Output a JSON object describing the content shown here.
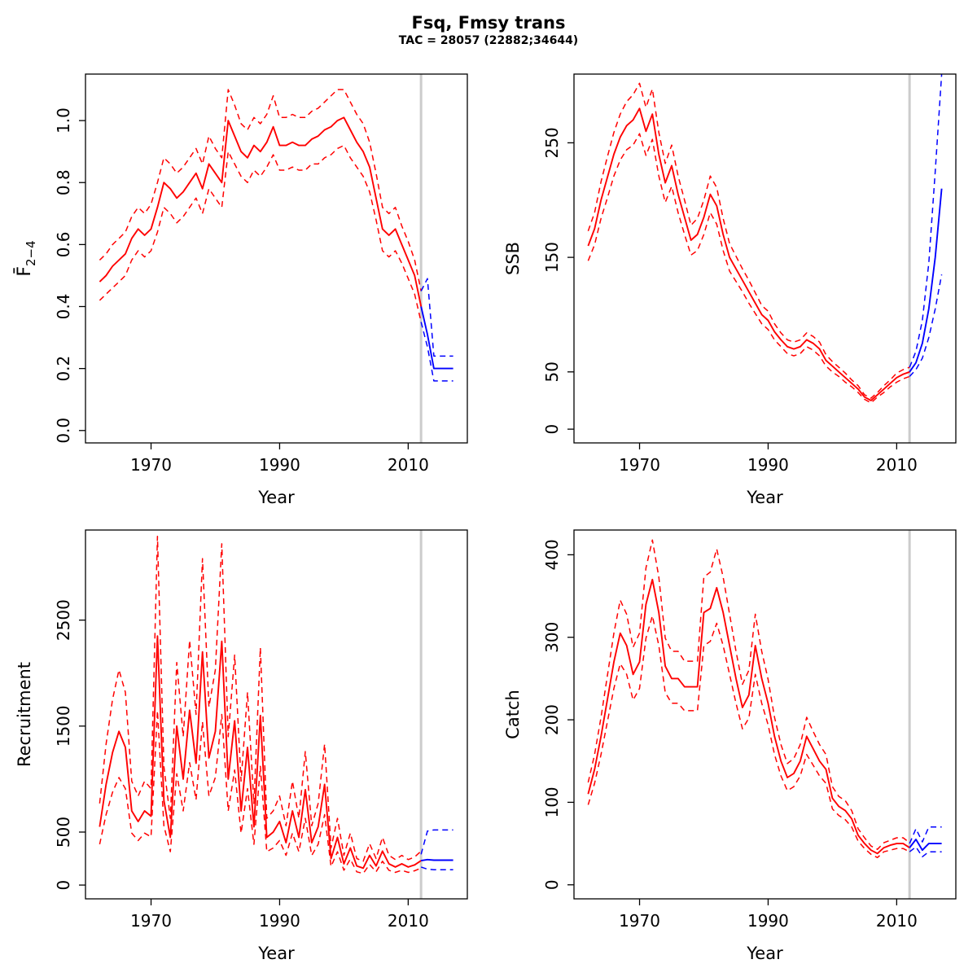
{
  "page": {
    "title": "Fsq, Fmsy trans",
    "subtitle": "TAC = 28057 (22882;34644)"
  },
  "chart_data": [
    {
      "id": "fbar",
      "type": "line",
      "title": "",
      "xlabel": "Year",
      "ylabel": "F̄",
      "ylabel_sub": "2−4",
      "xlim": [
        1959.8,
        2019.2
      ],
      "ylim": [
        -0.04,
        1.15
      ],
      "xticks": [
        1970,
        1990,
        2010
      ],
      "xtick_labels": [
        "1970",
        "1990",
        "2010"
      ],
      "yticks": [
        0.0,
        0.2,
        0.4,
        0.6,
        0.8,
        1.0
      ],
      "ytick_labels": [
        "0.0",
        "0.2",
        "0.4",
        "0.6",
        "0.8",
        "1.0"
      ],
      "vline_x": 2012,
      "legend": "none",
      "grid": false,
      "colors": {
        "history": "#ff0000",
        "forecast": "#0000ff",
        "vline": "#cccccc"
      },
      "x_history": [
        1962,
        1963,
        1964,
        1965,
        1966,
        1967,
        1968,
        1969,
        1970,
        1971,
        1972,
        1973,
        1974,
        1975,
        1976,
        1977,
        1978,
        1979,
        1980,
        1981,
        1982,
        1983,
        1984,
        1985,
        1986,
        1987,
        1988,
        1989,
        1990,
        1991,
        1992,
        1993,
        1994,
        1995,
        1996,
        1997,
        1998,
        1999,
        2000,
        2001,
        2002,
        2003,
        2004,
        2005,
        2006,
        2007,
        2008,
        2009,
        2010,
        2011,
        2012
      ],
      "history": {
        "median": [
          0.48,
          0.5,
          0.53,
          0.55,
          0.57,
          0.62,
          0.65,
          0.63,
          0.65,
          0.72,
          0.8,
          0.78,
          0.75,
          0.77,
          0.8,
          0.83,
          0.78,
          0.86,
          0.83,
          0.8,
          1.0,
          0.95,
          0.9,
          0.88,
          0.92,
          0.9,
          0.93,
          0.98,
          0.92,
          0.92,
          0.93,
          0.92,
          0.92,
          0.94,
          0.95,
          0.97,
          0.98,
          1.0,
          1.01,
          0.97,
          0.93,
          0.9,
          0.85,
          0.75,
          0.65,
          0.63,
          0.65,
          0.6,
          0.55,
          0.5,
          0.4
        ],
        "lower": [
          0.42,
          0.44,
          0.46,
          0.48,
          0.5,
          0.55,
          0.58,
          0.56,
          0.58,
          0.64,
          0.72,
          0.7,
          0.67,
          0.69,
          0.72,
          0.75,
          0.7,
          0.78,
          0.75,
          0.72,
          0.9,
          0.86,
          0.82,
          0.8,
          0.84,
          0.82,
          0.85,
          0.89,
          0.84,
          0.84,
          0.85,
          0.84,
          0.84,
          0.86,
          0.86,
          0.88,
          0.89,
          0.91,
          0.92,
          0.88,
          0.85,
          0.82,
          0.77,
          0.68,
          0.58,
          0.56,
          0.58,
          0.54,
          0.49,
          0.44,
          0.35
        ],
        "upper": [
          0.55,
          0.57,
          0.6,
          0.62,
          0.64,
          0.69,
          0.72,
          0.7,
          0.73,
          0.8,
          0.88,
          0.86,
          0.83,
          0.85,
          0.88,
          0.91,
          0.86,
          0.95,
          0.91,
          0.88,
          1.1,
          1.05,
          0.99,
          0.97,
          1.01,
          0.99,
          1.02,
          1.08,
          1.01,
          1.01,
          1.02,
          1.01,
          1.01,
          1.03,
          1.04,
          1.06,
          1.08,
          1.1,
          1.1,
          1.06,
          1.02,
          0.99,
          0.93,
          0.83,
          0.72,
          0.7,
          0.72,
          0.66,
          0.61,
          0.55,
          0.45
        ]
      },
      "x_forecast": [
        2012,
        2013,
        2014,
        2015,
        2016,
        2017
      ],
      "forecast": {
        "median": [
          0.4,
          0.31,
          0.2,
          0.2,
          0.2,
          0.2
        ],
        "lower": [
          0.35,
          0.27,
          0.16,
          0.16,
          0.16,
          0.16
        ],
        "upper": [
          0.45,
          0.49,
          0.24,
          0.24,
          0.24,
          0.24
        ]
      }
    },
    {
      "id": "ssb",
      "type": "line",
      "title": "",
      "xlabel": "Year",
      "ylabel": "SSB",
      "xlim": [
        1959.8,
        2019.2
      ],
      "ylim": [
        -12,
        310
      ],
      "xticks": [
        1970,
        1990,
        2010
      ],
      "xtick_labels": [
        "1970",
        "1990",
        "2010"
      ],
      "yticks": [
        0,
        50,
        150,
        250
      ],
      "ytick_labels": [
        "0",
        "50",
        "150",
        "250"
      ],
      "vline_x": 2012,
      "legend": "none",
      "grid": false,
      "colors": {
        "history": "#ff0000",
        "forecast": "#0000ff",
        "vline": "#cccccc"
      },
      "x_history": [
        1962,
        1963,
        1964,
        1965,
        1966,
        1967,
        1968,
        1969,
        1970,
        1971,
        1972,
        1973,
        1974,
        1975,
        1976,
        1977,
        1978,
        1979,
        1980,
        1981,
        1982,
        1983,
        1984,
        1985,
        1986,
        1987,
        1988,
        1989,
        1990,
        1991,
        1992,
        1993,
        1994,
        1995,
        1996,
        1997,
        1998,
        1999,
        2000,
        2001,
        2002,
        2003,
        2004,
        2005,
        2006,
        2007,
        2008,
        2009,
        2010,
        2011,
        2012
      ],
      "history": {
        "median": [
          160,
          175,
          200,
          220,
          240,
          255,
          265,
          270,
          280,
          260,
          275,
          240,
          215,
          230,
          205,
          185,
          165,
          170,
          185,
          205,
          195,
          170,
          150,
          140,
          130,
          120,
          110,
          100,
          95,
          85,
          78,
          72,
          70,
          72,
          78,
          75,
          70,
          60,
          55,
          50,
          45,
          40,
          35,
          28,
          25,
          30,
          35,
          40,
          45,
          48,
          50
        ],
        "lower": [
          147,
          161,
          184,
          202,
          221,
          235,
          244,
          248,
          258,
          239,
          253,
          221,
          198,
          212,
          189,
          170,
          152,
          156,
          170,
          189,
          179,
          156,
          138,
          129,
          120,
          110,
          101,
          92,
          87,
          78,
          72,
          66,
          64,
          66,
          72,
          69,
          64,
          55,
          50,
          46,
          41,
          37,
          32,
          26,
          23,
          28,
          32,
          37,
          41,
          44,
          46
        ],
        "upper": [
          173,
          189,
          216,
          238,
          259,
          275,
          286,
          292,
          302,
          281,
          297,
          259,
          232,
          248,
          221,
          200,
          178,
          184,
          200,
          221,
          211,
          184,
          162,
          151,
          140,
          130,
          119,
          108,
          103,
          92,
          84,
          78,
          76,
          78,
          84,
          81,
          76,
          65,
          59,
          54,
          49,
          43,
          38,
          30,
          27,
          32,
          38,
          43,
          49,
          52,
          54
        ]
      },
      "x_forecast": [
        2012,
        2013,
        2014,
        2015,
        2016,
        2017
      ],
      "forecast": {
        "median": [
          50,
          58,
          75,
          105,
          150,
          210
        ],
        "lower": [
          46,
          52,
          62,
          80,
          105,
          135
        ],
        "upper": [
          54,
          68,
          95,
          145,
          225,
          310
        ]
      }
    },
    {
      "id": "recruitment",
      "type": "line",
      "title": "",
      "xlabel": "Year",
      "ylabel": "Recruitment",
      "xlim": [
        1959.8,
        2019.2
      ],
      "ylim": [
        -130,
        3350
      ],
      "xticks": [
        1970,
        1990,
        2010
      ],
      "xtick_labels": [
        "1970",
        "1990",
        "2010"
      ],
      "yticks": [
        0,
        500,
        1500,
        2500
      ],
      "ytick_labels": [
        "0",
        "500",
        "1500",
        "2500"
      ],
      "vline_x": 2012,
      "legend": "none",
      "grid": false,
      "colors": {
        "history": "#ff0000",
        "forecast": "#0000ff",
        "vline": "#cccccc"
      },
      "x_history": [
        1962,
        1963,
        1964,
        1965,
        1966,
        1967,
        1968,
        1969,
        1970,
        1971,
        1972,
        1973,
        1974,
        1975,
        1976,
        1977,
        1978,
        1979,
        1980,
        1981,
        1982,
        1983,
        1984,
        1985,
        1986,
        1987,
        1988,
        1989,
        1990,
        1991,
        1992,
        1993,
        1994,
        1995,
        1996,
        1997,
        1998,
        1999,
        2000,
        2001,
        2002,
        2003,
        2004,
        2005,
        2006,
        2007,
        2008,
        2009,
        2010,
        2011,
        2012
      ],
      "history": {
        "median": [
          550,
          950,
          1250,
          1450,
          1300,
          700,
          600,
          700,
          650,
          2350,
          800,
          450,
          1500,
          1000,
          1650,
          1150,
          2200,
          1200,
          1450,
          2300,
          1000,
          1550,
          700,
          1300,
          550,
          1600,
          450,
          500,
          600,
          400,
          700,
          450,
          900,
          400,
          550,
          950,
          250,
          450,
          200,
          350,
          180,
          160,
          280,
          180,
          320,
          200,
          170,
          200,
          170,
          190,
          230
        ],
        "lower": [
          385,
          665,
          875,
          1015,
          910,
          490,
          420,
          490,
          455,
          1645,
          560,
          315,
          1050,
          700,
          1155,
          805,
          1540,
          840,
          1015,
          1610,
          700,
          1085,
          490,
          910,
          385,
          1120,
          315,
          350,
          420,
          280,
          490,
          315,
          630,
          280,
          385,
          665,
          175,
          315,
          140,
          245,
          125,
          110,
          195,
          125,
          225,
          140,
          120,
          140,
          120,
          135,
          160
        ],
        "upper": [
          770,
          1330,
          1750,
          2030,
          1820,
          980,
          840,
          980,
          910,
          3290,
          1120,
          630,
          2100,
          1400,
          2310,
          1610,
          3080,
          1680,
          2030,
          3220,
          1400,
          2170,
          980,
          1820,
          770,
          2240,
          630,
          700,
          840,
          560,
          980,
          630,
          1260,
          560,
          770,
          1330,
          350,
          630,
          280,
          490,
          250,
          225,
          390,
          250,
          450,
          280,
          240,
          280,
          240,
          265,
          320
        ]
      },
      "x_forecast": [
        2012,
        2013,
        2014,
        2015,
        2016,
        2017
      ],
      "forecast": {
        "median": [
          230,
          240,
          235,
          235,
          235,
          235
        ],
        "lower": [
          170,
          150,
          145,
          145,
          145,
          145
        ],
        "upper": [
          290,
          510,
          520,
          520,
          520,
          520
        ]
      }
    },
    {
      "id": "catch",
      "type": "line",
      "title": "",
      "xlabel": "Year",
      "ylabel": "Catch",
      "xlim": [
        1959.8,
        2019.2
      ],
      "ylim": [
        -17,
        430
      ],
      "xticks": [
        1970,
        1990,
        2010
      ],
      "xtick_labels": [
        "1970",
        "1990",
        "2010"
      ],
      "yticks": [
        0,
        100,
        200,
        300,
        400
      ],
      "ytick_labels": [
        "0",
        "100",
        "200",
        "300",
        "400"
      ],
      "vline_x": 2012,
      "legend": "none",
      "grid": false,
      "colors": {
        "history": "#ff0000",
        "forecast": "#0000ff",
        "vline": "#cccccc"
      },
      "x_history": [
        1962,
        1963,
        1964,
        1965,
        1966,
        1967,
        1968,
        1969,
        1970,
        1971,
        1972,
        1973,
        1974,
        1975,
        1976,
        1977,
        1978,
        1979,
        1980,
        1981,
        1982,
        1983,
        1984,
        1985,
        1986,
        1987,
        1988,
        1989,
        1990,
        1991,
        1992,
        1993,
        1994,
        1995,
        1996,
        1997,
        1998,
        1999,
        2000,
        2001,
        2002,
        2003,
        2004,
        2005,
        2006,
        2007,
        2008,
        2009,
        2010,
        2011,
        2012
      ],
      "history": {
        "median": [
          110,
          140,
          180,
          225,
          270,
          305,
          290,
          255,
          270,
          340,
          370,
          330,
          265,
          250,
          250,
          240,
          240,
          240,
          330,
          335,
          360,
          330,
          290,
          250,
          215,
          230,
          290,
          250,
          220,
          180,
          150,
          130,
          135,
          150,
          180,
          165,
          150,
          140,
          105,
          95,
          90,
          80,
          60,
          50,
          42,
          38,
          45,
          48,
          50,
          50,
          45
        ],
        "lower": [
          97,
          123,
          158,
          198,
          238,
          268,
          255,
          224,
          238,
          299,
          326,
          290,
          233,
          220,
          220,
          211,
          211,
          211,
          290,
          295,
          317,
          290,
          255,
          220,
          189,
          202,
          255,
          220,
          194,
          158,
          132,
          114,
          119,
          132,
          158,
          145,
          132,
          123,
          92,
          84,
          79,
          70,
          53,
          44,
          37,
          33,
          40,
          42,
          44,
          44,
          40
        ],
        "upper": [
          124,
          158,
          203,
          254,
          305,
          345,
          328,
          288,
          305,
          384,
          418,
          373,
          299,
          283,
          283,
          271,
          271,
          271,
          373,
          379,
          407,
          373,
          328,
          283,
          243,
          260,
          328,
          283,
          249,
          203,
          170,
          147,
          153,
          170,
          203,
          186,
          170,
          158,
          119,
          107,
          102,
          90,
          68,
          57,
          47,
          43,
          51,
          54,
          57,
          57,
          51
        ]
      },
      "x_forecast": [
        2012,
        2013,
        2014,
        2015,
        2016,
        2017
      ],
      "forecast": {
        "median": [
          45,
          55,
          42,
          50,
          50,
          50
        ],
        "lower": [
          40,
          46,
          34,
          40,
          40,
          40
        ],
        "upper": [
          50,
          68,
          52,
          70,
          70,
          70
        ]
      }
    }
  ]
}
